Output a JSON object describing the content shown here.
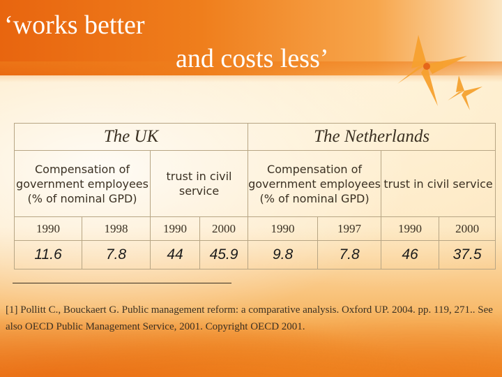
{
  "title": {
    "line1": "‘works better",
    "line2": "and costs less’"
  },
  "table": {
    "countries": [
      "The UK",
      "The Netherlands"
    ],
    "categories": [
      "Compensation of government employees (% of nominal GPD)",
      "trust in civil service",
      "Compensation of government employees (% of nominal GPD)",
      "trust in civil service"
    ],
    "years": [
      "1990",
      "1998",
      "1990",
      "2000",
      "1990",
      "1997",
      "1990",
      "2000"
    ],
    "values": [
      "11.6",
      "7.8",
      "44",
      "45.9",
      "9.8",
      "7.8",
      "46",
      "37.5"
    ]
  },
  "footnote": "[1] Pollitt C., Bouckaert G. Public management reform: a comparative analysis. Oxford UP. 2004. pp. 119, 271.. See also OECD Public Management Service, 2001. Copyright OECD 2001.",
  "colors": {
    "header_orange": "#ef7e1c",
    "text": "#3a3022",
    "table_border": "#b7a584"
  },
  "icons": [
    "sparkle-star-icon"
  ]
}
